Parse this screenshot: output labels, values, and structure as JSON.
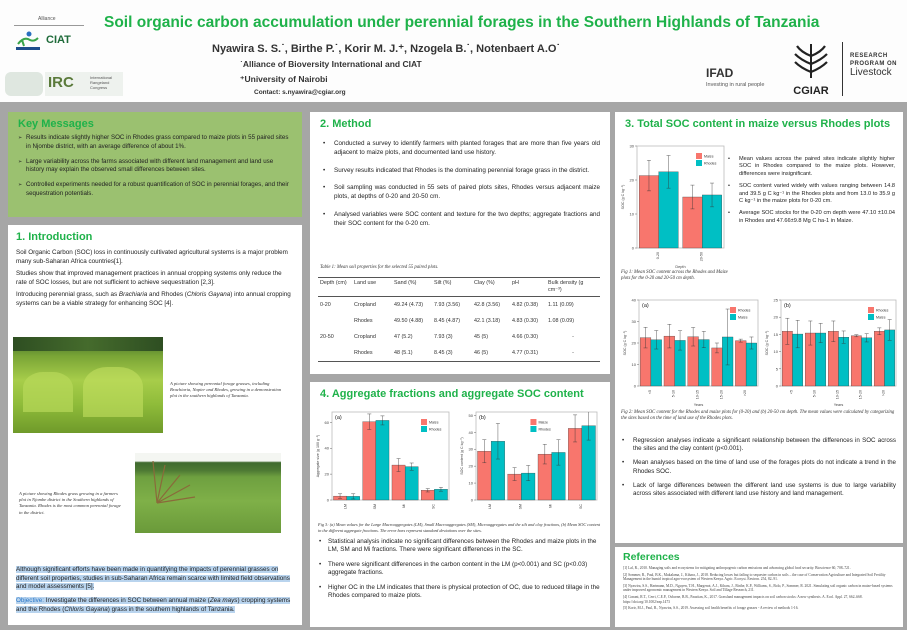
{
  "header": {
    "title": "Soil organic carbon accumulation under perennial forages in the Southern Highlands of Tanzania",
    "authors": "Nyawira S. S.˙, Birthe P.˙, Korir M. J.⁺, Nzogela B.˙, Notenbaert A.O˙",
    "affiliation_1": "˙Alliance of Bioversity International and CIAT",
    "affiliation_2": "⁺University of Nairobi",
    "contact": "Contact: s.nyawira@cgiar.org",
    "logos": {
      "alliance_label": "Alliance",
      "ciat": "CIAT",
      "bioversity": "Bioversity",
      "irc": "IRC",
      "irc_sub": "International Rangeland Congress",
      "ifad": "IFAD",
      "ifad_tagline": "Investing in rural people",
      "cgiar": "CGIAR",
      "crp_line1": "RESEARCH",
      "crp_line2": "PROGRAM ON",
      "crp_line3": "Livestock"
    }
  },
  "key_messages": {
    "title": "Key Messages",
    "items": [
      "Results indicate slightly higher SOC in Rhodes grass compared to  maize plots in 55 paired sites in Njombe district, with an average difference of about 1%.",
      "Large variability across the farms associated with different land management and land use history may explain the observed small differences between sites.",
      "Controlled experiments needed for a robust quantification of SOC in perennial forages, and their sequestration potentials."
    ]
  },
  "introduction": {
    "title": "1. Introduction",
    "p1": "Soil Organic Carbon (SOC) loss in continuously cultivated agricultural systems is a major problem  many sub-Saharan Africa countries[1].",
    "p2": "Studies show that improved management practices in annual cropping systems only reduce the rate of SOC losses, but are not sufficient to achieve sequestration [2,3].",
    "p3_a": "Introducing perennial grass, such as ",
    "p3_b": "Brachiaria",
    "p3_c": " and Rhodes (",
    "p3_d": "Chloris Gayana",
    "p3_e": ") into annual cropping systems can be a viable strategy for enhancing SOC  [4].",
    "photo1_caption": "A picture showing  perennial forage grasses, including Brachiaria, Napier and Rhodes, growing in a demonstration plot in the southern highlands of Tanzania.",
    "photo2_caption": "A picture showing Rhodes grass growing in a farmers plot in Njombe district in the Southern highlands of Tanzania. Rhodes is the most common perennial forage in the district.",
    "p4": "Although significant efforts have been made in quantifying the impacts of perennial grasses on different soil properties, studies in sub-Saharan Africa remain scarce with limited field observations and model assessments [5].",
    "objective_label": "Objective:",
    "objective_a": " Investigate the differences in SOC between annual maize (",
    "objective_b": "Zea mays",
    "objective_c": ") cropping systems and the Rhodes (",
    "objective_d": "Chloris Gayana",
    "objective_e": ") grass in the southern highlands of Tanzania."
  },
  "method": {
    "title": "2. Method",
    "items": [
      "Conducted a survey to identify farmers with planted forages that are more than five years old adjacent to maize plots, and documented land use history.",
      "Survey results indicated that Rhodes is the dominating perennial forage grass in the district.",
      "Soil sampling was conducted in 55 sets of paired plots sites, Rhodes versus adjacent maize plots, at depths of 0-20 and 20-50 cm.",
      "Analysed variables were SOC content and texture for the two depths; aggregate fractions and their SOC content for the 0-20 cm."
    ],
    "table_caption": "Table 1: Mean soil properties for the selected 55 paired plots.",
    "table": {
      "headers": [
        "Depth (cm)",
        "Land use",
        "Sand (%)",
        "Silt (%)",
        "Clay (%)",
        "pH",
        "Bulk density (g cm⁻³)"
      ],
      "rows": [
        [
          "0-20",
          "Cropland",
          "49.24 (4.73)",
          "7.93 (3.56)",
          "42.8 (3.56)",
          "4.82 (0.38)",
          "1.11 (0.09)"
        ],
        [
          "",
          "Rhodes",
          "49.50 (4.88)",
          "8.45 (4.87)",
          "42.1 (3.18)",
          "4.83 (0.30)",
          "1.08 (0.09)"
        ],
        [
          "20-50",
          "Cropland",
          "47 (5.2)",
          "7.93 (3)",
          "45 (5)",
          "4.66 (0.30)",
          "-"
        ],
        [
          "",
          "Rhodes",
          "48 (5.1)",
          "8.45 (3)",
          "46 (5)",
          "4.77 (0.31)",
          "-"
        ]
      ]
    }
  },
  "aggregates": {
    "title": "4. Aggregate fractions and aggregate SOC content",
    "caption": "Fig 3: (a) Mean values for the Large Macroaggregates (LM), Small Macroaggregates (SM), Microaggregates and the silt and clay fractions, (b) Mean SOC content in the different aggregate fractions. The error bars represent standard deviations over the sites.",
    "items": [
      "Statistical analysis indicate no significant differences between the Rhodes and maize plots in the LM, SM and  Mi fractions. There were significant differences in the SC.",
      "There were significant differences in the carbon content in the LM (p<0.001) and SC (p<0.03) aggregate fractions.",
      "Higher OC in the LM indicates that there is physical protection of OC, due to reduced tillage in the Rhodes compared to maize plots."
    ]
  },
  "total_soc": {
    "title": "3. Total SOC  content in maize versus Rhodes plots",
    "side_items": [
      "Mean values across the paired sites indicate slightly higher SOC in Rhodes compared to the maize plots. However, differences were insignificant.",
      "SOC content varied widely with values ranging between 14.8 and 39.5 g C kg⁻¹ in the Rhodes plots and from 13.0 to 35.9 g C kg⁻¹  in the maize plots for 0-20 cm.",
      "Average SOC stocks for the 0-20 cm depth were 47.10 ±10.04 in Rhodes and 47.66±9.8 Mg C ha-1 in Maize."
    ],
    "fig1_caption": "Fig 1: Mean SOC content across the Rhodes and Maize plots for the 0-20 and 20-50 cm depth.",
    "fig2_caption": "Fig 2: Mean SOC content for the Rhodes and maize plots for (0-20) and (b) 20-50 cm depth. The mean values were calculated by categorizing the sites based on the time of land use of the Rhodes plots.",
    "bottom_items": [
      "Regression analyses indicate a significant relationship between the differences in SOC across the sites and the clay content (p<0.001).",
      "Mean analyses based on the time of land use of the forages plots do not indicate a trend in the Rhodes SOC.",
      "Lack of large differences between the different land use systems is due to large variability across sites associated with different land use history and land management."
    ]
  },
  "references": {
    "title": "References",
    "items": [
      "[1] Lal, R., 2010. Managing soils and ecosystems for mitigating anthropogenic carbon emissions and advancing global food security. Bioscience 60, 708–721.",
      "[2] Sommer, R., Paul, B.K., Mukalama, J., Kihara, J., 2018. Reducing losses but failing to sequester carbon in soils – the case of Conservation Agriculture and Integrated Soil Fertility Management in the humid tropical agro-ecosystem of Western Kenya. Agric. Ecosyst. Environ. 254, 82–91.",
      "[3] Nyawira, S.S., Hartmann, M.D., Nguyen, T.H., Margenot, A.J., Kihara, J., Birthe, K.P., Williams, S., Bolo, P., Sommer, R. 2021. Simulating soil organic carbon in maize-based systems under improved agronomic management in Western Kenya. Soil and Tillage Research, 211.",
      "[4] Conant, R.T., Cerri, C.E.P., Osborne, B.B., Paustian, K., 2017. Grassland management impacts on soil carbon stocks: A new synthesis. A. Ecol. Appl. 27, 662–668. https://doi.org/10.1002/eap.1473",
      "[5] Korir, M.J., Paul, B., Nyawira, S.S., 2019. Assessing soil health benefits of forage grasses - A review of methods 1-16."
    ]
  },
  "colors": {
    "accent_green": "#1fb24a",
    "key_messages_bg": "#9bc170",
    "maize_red": "#f8766d",
    "rhodes_teal": "#00bfc4",
    "page_bg": "#a6a6a6",
    "highlight_blue": "#b9d4ee"
  },
  "chart_data": [
    {
      "id": "fig1",
      "type": "bar",
      "title": "",
      "xlabel": "Depth",
      "ylabel": "SOC (g C kg⁻¹)",
      "categories": [
        "0-20",
        "20-50"
      ],
      "ylim": [
        0,
        30
      ],
      "yticks": [
        0,
        10,
        20,
        30
      ],
      "legend": [
        "Maize",
        "Rhodes"
      ],
      "legend_position": "top-right",
      "series": [
        {
          "name": "Maize",
          "values": [
            21.3,
            15.0
          ],
          "errors": [
            4.5,
            3.5
          ],
          "color": "#f8766d"
        },
        {
          "name": "Rhodes",
          "values": [
            22.4,
            15.6
          ],
          "errors": [
            4.8,
            3.5
          ],
          "color": "#00bfc4"
        }
      ]
    },
    {
      "id": "fig2a",
      "type": "bar",
      "title": "(a)",
      "xlabel": "Years",
      "ylabel": "SOC (g C kg⁻¹)",
      "categories": [
        "<5",
        "5-10",
        "10-15",
        "15-20",
        ">20"
      ],
      "ylim": [
        0,
        40
      ],
      "yticks": [
        0,
        10,
        20,
        30,
        40
      ],
      "legend": [
        "Rhodes",
        "Maize"
      ],
      "legend_position": "top-right",
      "series": [
        {
          "name": "Rhodes",
          "values": [
            22.5,
            23.2,
            22.9,
            17.7,
            21.1
          ],
          "errors": [
            4.8,
            5.5,
            4.3,
            2.3,
            0.7
          ],
          "color": "#f8766d"
        },
        {
          "name": "Maize",
          "values": [
            21.5,
            21.2,
            21.6,
            22.8,
            20.0
          ],
          "errors": [
            4.3,
            4.5,
            3.8,
            13.0,
            2.8
          ],
          "color": "#00bfc4"
        }
      ]
    },
    {
      "id": "fig2b",
      "type": "bar",
      "title": "(b)",
      "xlabel": "Years",
      "ylabel": "SOC (g C kg⁻¹)",
      "categories": [
        "<5",
        "5-10",
        "10-15",
        "15-20",
        ">20"
      ],
      "ylim": [
        0,
        25
      ],
      "yticks": [
        0,
        5,
        10,
        15,
        20,
        25
      ],
      "legend": [
        "Rhodes",
        "Maize"
      ],
      "legend_position": "top-right",
      "series": [
        {
          "name": "Rhodes",
          "values": [
            15.9,
            15.4,
            15.9,
            14.6,
            15.9
          ],
          "errors": [
            3.8,
            3.5,
            3.0,
            0.3,
            1.0
          ],
          "color": "#f8766d"
        },
        {
          "name": "Maize",
          "values": [
            15.1,
            15.4,
            14.2,
            14.0,
            16.3
          ],
          "errors": [
            4.0,
            2.8,
            1.8,
            1.2,
            3.0
          ],
          "color": "#00bfc4"
        }
      ]
    },
    {
      "id": "fig3a",
      "type": "bar",
      "title": "(a)",
      "xlabel": "",
      "ylabel": "Aggregate size (g 100 g⁻¹)",
      "categories": [
        "LM",
        "SM",
        "Mi",
        "SC"
      ],
      "ylim": [
        0,
        68
      ],
      "yticks": [
        0,
        20,
        40,
        60
      ],
      "legend": [
        "Maize",
        "Rhodes"
      ],
      "legend_position": "top-right",
      "series": [
        {
          "name": "Maize",
          "values": [
            3.0,
            60.5,
            27.0,
            7.5
          ],
          "errors": [
            1.8,
            6.0,
            5.0,
            1.3
          ],
          "color": "#f8766d"
        },
        {
          "name": "Rhodes",
          "values": [
            2.8,
            61.5,
            25.8,
            8.3
          ],
          "errors": [
            2.0,
            3.5,
            2.8,
            1.5
          ],
          "color": "#00bfc4"
        }
      ]
    },
    {
      "id": "fig3b",
      "type": "bar",
      "title": "(b)",
      "xlabel": "",
      "ylabel": "SOC content (g C kg⁻¹)",
      "categories": [
        "LM",
        "SM",
        "Mi",
        "SC"
      ],
      "ylim": [
        0,
        52
      ],
      "yticks": [
        0,
        10,
        20,
        30,
        40,
        50
      ],
      "legend": [
        "Maize",
        "Rhodes"
      ],
      "legend_position": "top-center",
      "series": [
        {
          "name": "Maize",
          "values": [
            28.8,
            15.3,
            27.1,
            42.3
          ],
          "errors": [
            6.8,
            3.8,
            5.8,
            8.0
          ],
          "color": "#f8766d"
        },
        {
          "name": "Rhodes",
          "values": [
            34.7,
            15.9,
            28.1,
            43.9
          ],
          "errors": [
            10.5,
            4.5,
            7.5,
            8.5
          ],
          "color": "#00bfc4"
        }
      ]
    }
  ]
}
